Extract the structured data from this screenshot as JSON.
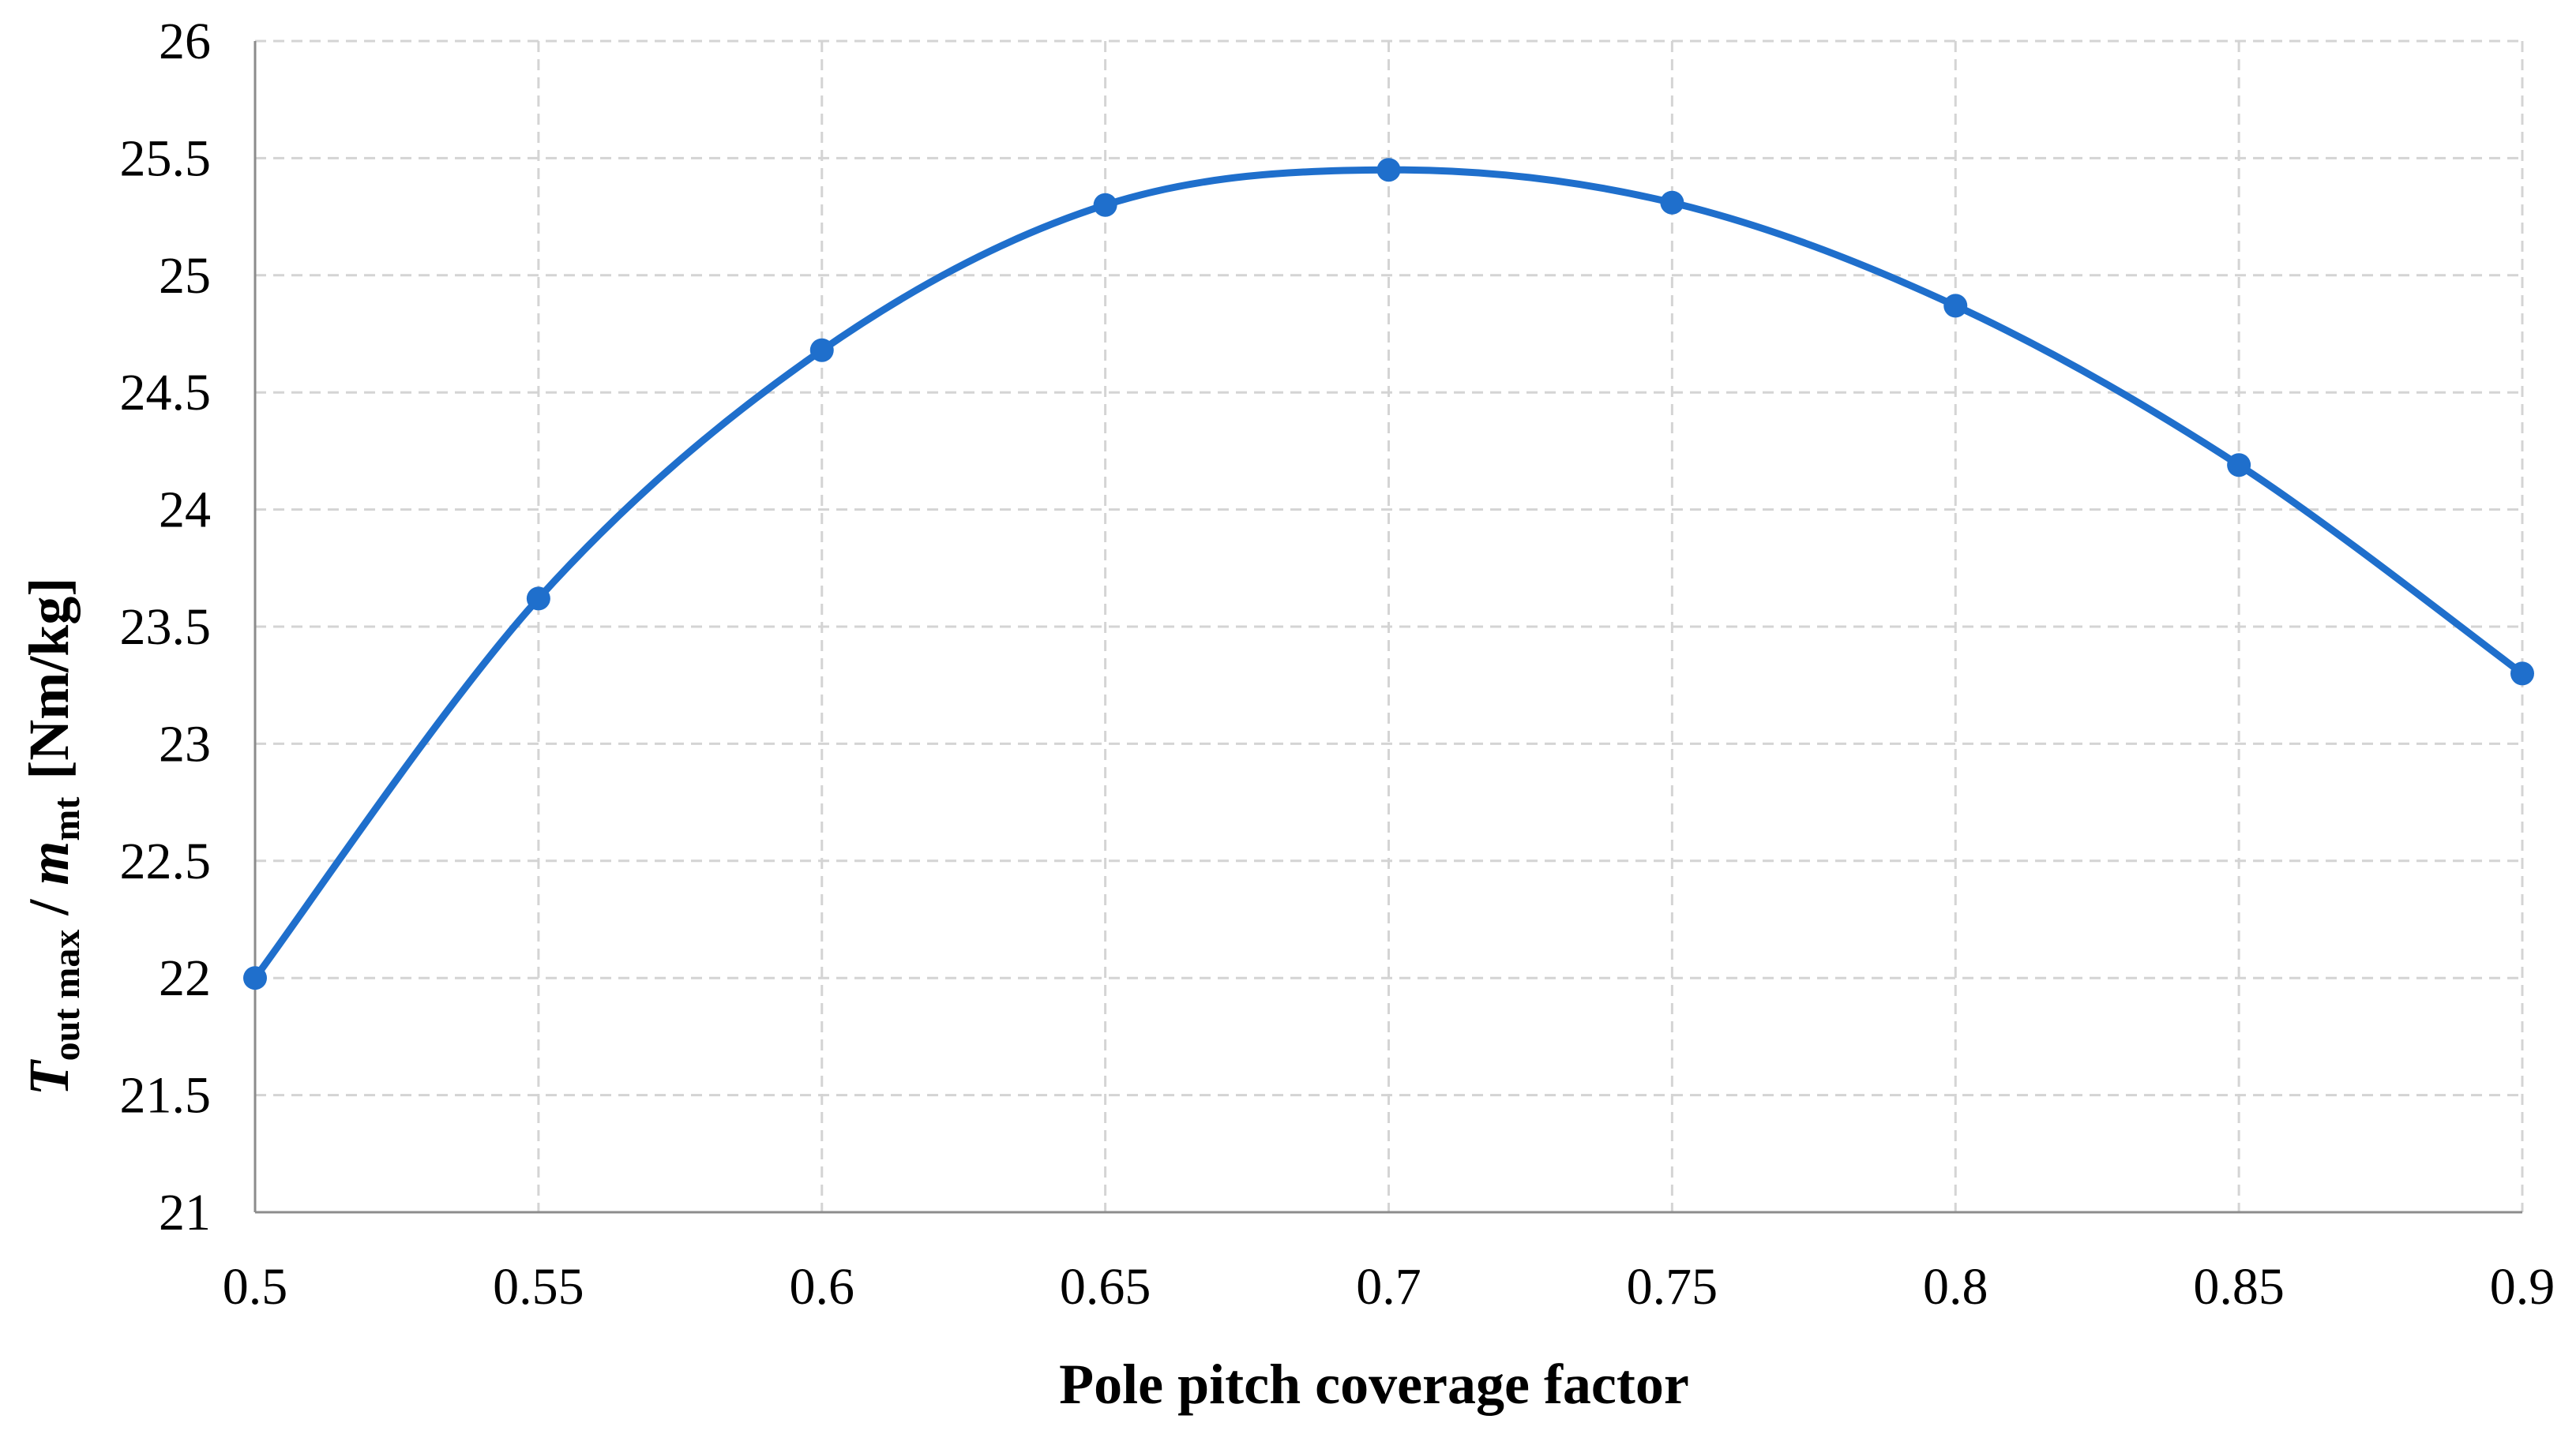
{
  "chart_data": {
    "type": "line",
    "xlabel": "Pole pitch coverage factor",
    "ylabel": {
      "T": "T",
      "sub1": "out max",
      "slash": " / ",
      "m": "m",
      "sub2": "mt",
      "unit": "[Nm/kg]"
    },
    "x_ticks": [
      "0.5",
      "0.55",
      "0.6",
      "0.65",
      "0.7",
      "0.75",
      "0.8",
      "0.85",
      "0.9"
    ],
    "y_ticks": [
      "21",
      "21.5",
      "22",
      "22.5",
      "23",
      "23.5",
      "24",
      "24.5",
      "25",
      "25.5",
      "26"
    ],
    "xlim": [
      0.5,
      0.9
    ],
    "ylim": [
      21,
      26
    ],
    "grid": true,
    "grid_style": "dashed",
    "series": [
      {
        "x": [
          0.5,
          0.55,
          0.6,
          0.65,
          0.7,
          0.75,
          0.8,
          0.85,
          0.9
        ],
        "y": [
          22.0,
          23.62,
          24.68,
          25.3,
          25.45,
          25.31,
          24.87,
          24.19,
          23.3
        ],
        "color": "#1f6fcc",
        "smooth": true,
        "markers": true
      }
    ]
  }
}
